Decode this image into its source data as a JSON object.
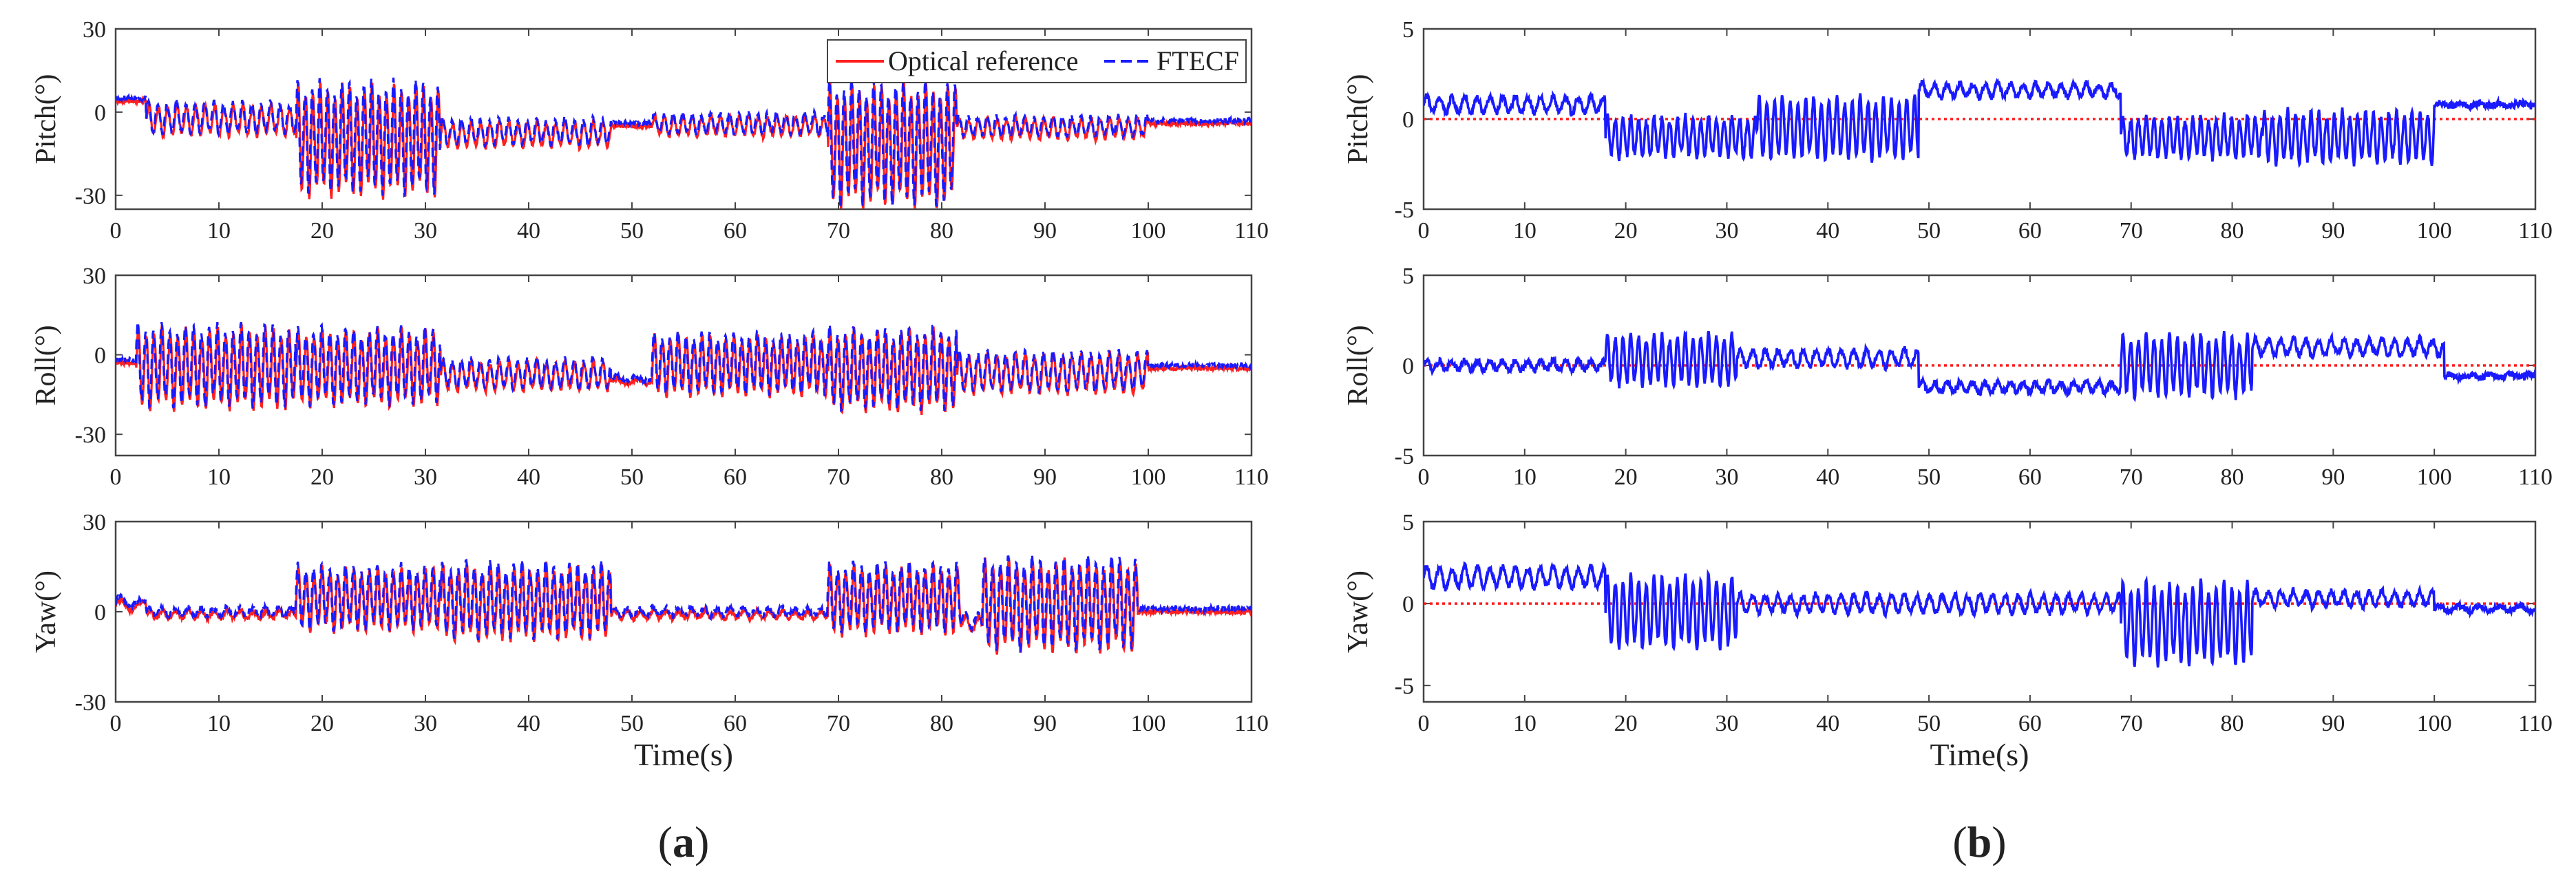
{
  "chart_data": [
    {
      "type": "line",
      "panel": "a",
      "panel_label_parts": [
        "(",
        "a",
        ")"
      ],
      "xlabel": "Time(s)",
      "x_ticks": [
        0,
        10,
        20,
        30,
        40,
        50,
        60,
        70,
        80,
        90,
        100,
        110
      ],
      "xlim": [
        0,
        110
      ],
      "legend": {
        "placement": "top-right",
        "entries": [
          {
            "label": "Optical reference",
            "color": "#ff2020",
            "style": "solid"
          },
          {
            "label": "FTECF",
            "color": "#1a1aff",
            "style": "dashed"
          }
        ]
      },
      "series_names": [
        "Optical reference",
        "FTECF"
      ],
      "subplots": [
        {
          "ylabel": "Pitch(°)",
          "ylim": [
            -35,
            30
          ],
          "y_ticks": [
            30,
            0,
            -30
          ],
          "baseline": -4,
          "segments": [
            {
              "t0": 0,
              "t1": 3,
              "base": 4,
              "amp": 0,
              "freq": 0
            },
            {
              "t0": 3,
              "t1": 17.5,
              "base": -3,
              "amp": 6,
              "freq": 1.1
            },
            {
              "t0": 17.5,
              "t1": 31.5,
              "base": -10,
              "amp": 21,
              "freq": 1.4
            },
            {
              "t0": 31.5,
              "t1": 48,
              "base": -8,
              "amp": 5,
              "freq": 1.1
            },
            {
              "t0": 48,
              "t1": 52,
              "base": -5,
              "amp": 0,
              "freq": 0
            },
            {
              "t0": 52,
              "t1": 69,
              "base": -5,
              "amp": 4,
              "freq": 1.1
            },
            {
              "t0": 69,
              "t1": 81.5,
              "base": -12,
              "amp": 23,
              "freq": 1.4
            },
            {
              "t0": 81.5,
              "t1": 100,
              "base": -6,
              "amp": 4,
              "freq": 1.1
            },
            {
              "t0": 100,
              "t1": 110,
              "base": -4,
              "amp": 0,
              "freq": 0
            }
          ]
        },
        {
          "ylabel": "Roll(°)",
          "ylim": [
            -38,
            30
          ],
          "y_ticks": [
            30,
            0,
            -30
          ],
          "baseline": -4,
          "segments": [
            {
              "t0": 0,
              "t1": 2,
              "base": -3,
              "amp": 0,
              "freq": 0
            },
            {
              "t0": 2,
              "t1": 17.5,
              "base": -5,
              "amp": 16,
              "freq": 1.3
            },
            {
              "t0": 17.5,
              "t1": 31.5,
              "base": -5,
              "amp": 15,
              "freq": 1.3
            },
            {
              "t0": 31.5,
              "t1": 48,
              "base": -8,
              "amp": 6,
              "freq": 1.1
            },
            {
              "t0": 48,
              "t1": 52,
              "base": -10,
              "amp": 1,
              "freq": 0.5
            },
            {
              "t0": 52,
              "t1": 69,
              "base": -4,
              "amp": 12,
              "freq": 1.3
            },
            {
              "t0": 69,
              "t1": 81.5,
              "base": -6,
              "amp": 16,
              "freq": 1.3
            },
            {
              "t0": 81.5,
              "t1": 100,
              "base": -7,
              "amp": 8,
              "freq": 1.1
            },
            {
              "t0": 100,
              "t1": 110,
              "base": -5,
              "amp": 0,
              "freq": 0
            }
          ]
        },
        {
          "ylabel": "Yaw(°)",
          "ylim": [
            -30,
            30
          ],
          "y_ticks": [
            30,
            0,
            -30
          ],
          "baseline": 0,
          "segments": [
            {
              "t0": 0,
              "t1": 3,
              "base": 2,
              "amp": 2,
              "freq": 0.5
            },
            {
              "t0": 3,
              "t1": 17.5,
              "base": -1,
              "amp": 1.5,
              "freq": 0.8
            },
            {
              "t0": 17.5,
              "t1": 31.5,
              "base": 4,
              "amp": 11,
              "freq": 1.3
            },
            {
              "t0": 31.5,
              "t1": 48,
              "base": 3,
              "amp": 13,
              "freq": 1.3
            },
            {
              "t0": 48,
              "t1": 69,
              "base": -1,
              "amp": 1.5,
              "freq": 0.8
            },
            {
              "t0": 69,
              "t1": 82,
              "base": 4,
              "amp": 12,
              "freq": 1.3
            },
            {
              "t0": 82,
              "t1": 84,
              "base": -4,
              "amp": 3,
              "freq": 0.8
            },
            {
              "t0": 84,
              "t1": 99,
              "base": 2,
              "amp": 16,
              "freq": 1.3
            },
            {
              "t0": 99,
              "t1": 110,
              "base": 0,
              "amp": 0,
              "freq": 0
            }
          ]
        }
      ]
    },
    {
      "type": "line",
      "panel": "b",
      "panel_label_parts": [
        "(",
        "b",
        ")"
      ],
      "xlabel": "Time(s)",
      "x_ticks": [
        0,
        10,
        20,
        30,
        40,
        50,
        60,
        70,
        80,
        90,
        100,
        110
      ],
      "xlim": [
        0,
        110
      ],
      "reference_line": {
        "y": 0,
        "color": "#ff1a1a",
        "style": "dotted"
      },
      "series_color": "#1a1aff",
      "subplots": [
        {
          "ylabel": "Pitch(°)",
          "ylim": [
            -5,
            5
          ],
          "y_ticks": [
            5,
            0,
            -5
          ],
          "segments": [
            {
              "t0": 0,
              "t1": 18,
              "base": 0.8,
              "amp": 0.5,
              "freq": 0.8
            },
            {
              "t0": 18,
              "t1": 33,
              "base": -1,
              "amp": 1.2,
              "freq": 1.3
            },
            {
              "t0": 33,
              "t1": 49,
              "base": -0.5,
              "amp": 1.8,
              "freq": 1.3
            },
            {
              "t0": 49,
              "t1": 69,
              "base": 1.6,
              "amp": 0.4,
              "freq": 0.8
            },
            {
              "t0": 69,
              "t1": 83,
              "base": -1,
              "amp": 1.2,
              "freq": 1.3
            },
            {
              "t0": 83,
              "t1": 100,
              "base": -1,
              "amp": 1.5,
              "freq": 1.3
            },
            {
              "t0": 100,
              "t1": 110,
              "base": 0.8,
              "amp": 0.1,
              "freq": 0.5
            }
          ]
        },
        {
          "ylabel": "Roll(°)",
          "ylim": [
            -5,
            5
          ],
          "y_ticks": [
            5,
            0,
            -5
          ],
          "segments": [
            {
              "t0": 0,
              "t1": 18,
              "base": 0,
              "amp": 0.3,
              "freq": 0.8
            },
            {
              "t0": 18,
              "t1": 31,
              "base": 0.3,
              "amp": 1.5,
              "freq": 1.3
            },
            {
              "t0": 31,
              "t1": 49,
              "base": 0.4,
              "amp": 0.5,
              "freq": 0.8
            },
            {
              "t0": 49,
              "t1": 69,
              "base": -1.2,
              "amp": 0.3,
              "freq": 0.8
            },
            {
              "t0": 69,
              "t1": 82,
              "base": 0,
              "amp": 1.8,
              "freq": 1.3
            },
            {
              "t0": 82,
              "t1": 101,
              "base": 1,
              "amp": 0.5,
              "freq": 0.8
            },
            {
              "t0": 101,
              "t1": 110,
              "base": -0.6,
              "amp": 0.1,
              "freq": 0.5
            }
          ]
        },
        {
          "ylabel": "Yaw(°)",
          "ylim": [
            -6,
            5
          ],
          "y_ticks": [
            5,
            0,
            -5
          ],
          "segments": [
            {
              "t0": 0,
              "t1": 18,
              "base": 1.6,
              "amp": 0.7,
              "freq": 0.8
            },
            {
              "t0": 18,
              "t1": 31,
              "base": -0.5,
              "amp": 2.3,
              "freq": 1.3
            },
            {
              "t0": 31,
              "t1": 69,
              "base": 0,
              "amp": 0.6,
              "freq": 0.8
            },
            {
              "t0": 69,
              "t1": 82,
              "base": -1.2,
              "amp": 2.6,
              "freq": 1.3
            },
            {
              "t0": 82,
              "t1": 100,
              "base": 0.3,
              "amp": 0.5,
              "freq": 0.8
            },
            {
              "t0": 100,
              "t1": 110,
              "base": -0.3,
              "amp": 0.2,
              "freq": 0.5
            }
          ]
        }
      ]
    }
  ]
}
